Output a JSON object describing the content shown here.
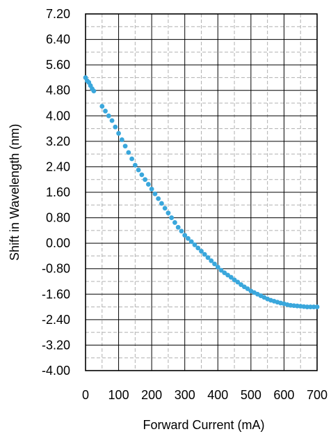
{
  "chart_data": {
    "type": "scatter",
    "title": "",
    "xlabel": "Forward Current  (mA)",
    "ylabel": "Shift in Wavelength (nm)",
    "xlim": [
      0,
      700
    ],
    "ylim": [
      -4.0,
      7.2
    ],
    "x_ticks": [
      0,
      100,
      200,
      300,
      400,
      500,
      600,
      700
    ],
    "y_ticks": [
      7.2,
      6.4,
      5.6,
      4.8,
      4.0,
      3.2,
      2.4,
      1.6,
      0.8,
      0.0,
      -0.8,
      -1.6,
      -2.4,
      -3.2,
      -4.0
    ],
    "x_tick_labels": [
      "0",
      "100",
      "200",
      "300",
      "400",
      "500",
      "600",
      "700"
    ],
    "y_tick_labels": [
      "7.20",
      "6.40",
      "5.60",
      "4.80",
      "4.00",
      "3.20",
      "2.40",
      "1.60",
      "0.80",
      "0.00",
      "-0.80",
      "-1.60",
      "-2.40",
      "-3.20",
      "-4.00"
    ],
    "grid": {
      "major": "solid",
      "minor": "dashed"
    },
    "marker_color": "#3aa7dc",
    "series": [
      {
        "x": [
          0,
          5,
          10,
          15,
          20,
          25,
          50,
          60,
          70,
          80,
          90,
          100,
          110,
          120,
          130,
          140,
          150,
          160,
          170,
          180,
          190,
          200,
          210,
          220,
          230,
          240,
          250,
          260,
          270,
          280,
          290,
          300,
          310,
          320,
          330,
          340,
          350,
          360,
          370,
          380,
          390,
          400,
          410,
          420,
          430,
          440,
          450,
          460,
          470,
          480,
          490,
          500,
          510,
          520,
          530,
          540,
          550,
          560,
          570,
          580,
          590,
          600,
          610,
          620,
          630,
          640,
          650,
          660,
          670,
          680,
          690,
          700
        ],
        "y": [
          5.2,
          5.1,
          5.05,
          4.95,
          4.85,
          4.78,
          4.3,
          4.15,
          4.0,
          3.85,
          3.65,
          3.45,
          3.25,
          3.05,
          2.85,
          2.65,
          2.45,
          2.3,
          2.15,
          2.0,
          1.85,
          1.7,
          1.55,
          1.4,
          1.25,
          1.1,
          0.95,
          0.8,
          0.65,
          0.5,
          0.38,
          0.25,
          0.15,
          0.05,
          -0.05,
          -0.15,
          -0.25,
          -0.35,
          -0.45,
          -0.55,
          -0.65,
          -0.75,
          -0.85,
          -0.93,
          -1.0,
          -1.07,
          -1.15,
          -1.22,
          -1.3,
          -1.37,
          -1.43,
          -1.5,
          -1.55,
          -1.6,
          -1.65,
          -1.7,
          -1.75,
          -1.79,
          -1.82,
          -1.85,
          -1.88,
          -1.9,
          -1.93,
          -1.95,
          -1.96,
          -1.97,
          -1.98,
          -1.99,
          -2.0,
          -2.0,
          -2.0,
          -2.0
        ]
      }
    ]
  }
}
